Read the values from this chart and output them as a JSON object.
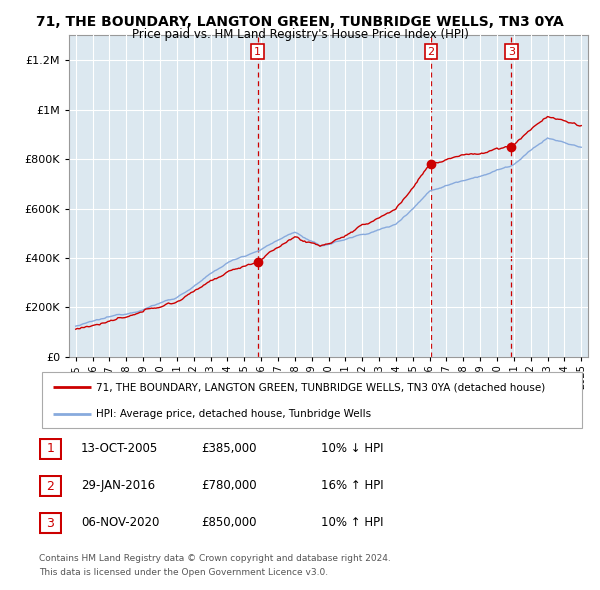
{
  "title": "71, THE BOUNDARY, LANGTON GREEN, TUNBRIDGE WELLS, TN3 0YA",
  "subtitle": "Price paid vs. HM Land Registry's House Price Index (HPI)",
  "legend_line1": "71, THE BOUNDARY, LANGTON GREEN, TUNBRIDGE WELLS, TN3 0YA (detached house)",
  "legend_line2": "HPI: Average price, detached house, Tunbridge Wells",
  "footnote1": "Contains HM Land Registry data © Crown copyright and database right 2024.",
  "footnote2": "This data is licensed under the Open Government Licence v3.0.",
  "sale_color": "#cc0000",
  "hpi_color": "#88aadd",
  "chart_bg": "#dce8f0",
  "ylim": [
    0,
    1300000
  ],
  "yticks": [
    0,
    200000,
    400000,
    600000,
    800000,
    1000000,
    1200000
  ],
  "xmin": 1995,
  "xmax": 2025,
  "sales": [
    {
      "year": 2005.79,
      "price": 385000,
      "label": "1"
    },
    {
      "year": 2016.08,
      "price": 780000,
      "label": "2"
    },
    {
      "year": 2020.85,
      "price": 850000,
      "label": "3"
    }
  ],
  "sale_table": [
    {
      "num": "1",
      "date": "13-OCT-2005",
      "price": "£385,000",
      "hpi": "10% ↓ HPI"
    },
    {
      "num": "2",
      "date": "29-JAN-2016",
      "price": "£780,000",
      "hpi": "16% ↑ HPI"
    },
    {
      "num": "3",
      "date": "06-NOV-2020",
      "price": "£850,000",
      "hpi": "10% ↑ HPI"
    }
  ]
}
